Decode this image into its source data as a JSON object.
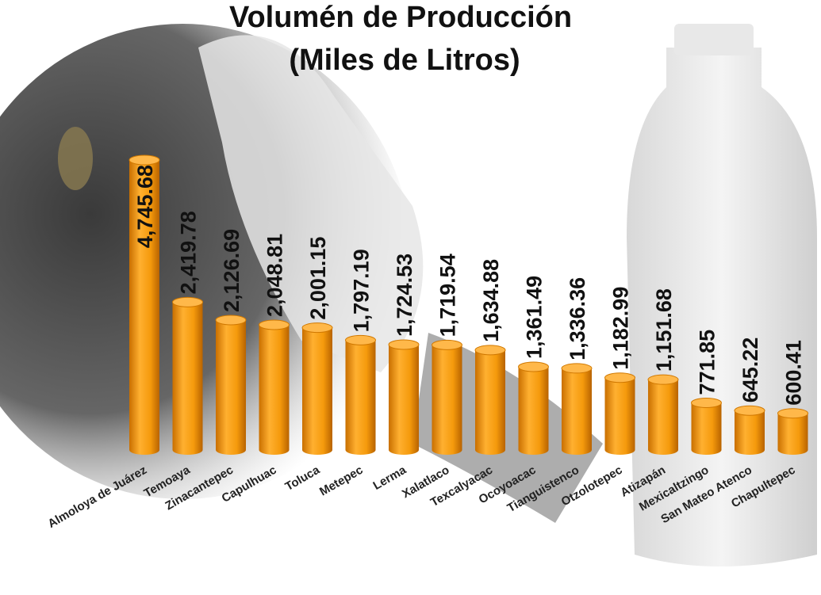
{
  "chart_data": {
    "type": "bar",
    "title": "Volumén de Producción",
    "subtitle": "(Miles de Litros)",
    "categories": [
      "Almoloya de Juárez",
      "Temoaya",
      "Zinacantepec",
      "Capulhuac",
      "Toluca",
      "Metepec",
      "Lerma",
      "Xalatlaco",
      "Texcalyacac",
      "Ocoyoacac",
      "Tianguistenco",
      "Otzolotepec",
      "Atizapán",
      "Mexicaltzingo",
      "San Mateo Atenco",
      "Chapultepec"
    ],
    "values": [
      4745.68,
      2419.78,
      2126.69,
      2048.81,
      2001.15,
      1797.19,
      1724.53,
      1719.54,
      1634.88,
      1361.49,
      1336.36,
      1182.99,
      1151.68,
      771.85,
      645.22,
      600.41
    ],
    "value_labels": [
      "4,745.68",
      "2,419.78",
      "2,126.69",
      "2,048.81",
      "2,001.15",
      "1,797.19",
      "1,724.53",
      "1,719.54",
      "1,634.88",
      "1,361.49",
      "1,336.36",
      "1,182.99",
      "1,151.68",
      "771.85",
      "645.22",
      "600.41"
    ],
    "color": "#f59a0c"
  }
}
